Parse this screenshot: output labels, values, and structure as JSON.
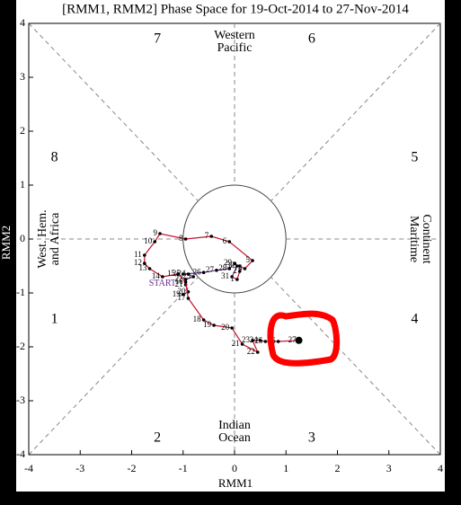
{
  "chart_data": {
    "type": "line",
    "title": "[RMM1, RMM2] Phase Space for 19-Oct-2014 to 27-Nov-2014",
    "xlabel": "RMM1",
    "ylabel": "RMM2",
    "xlim": [
      -4,
      4
    ],
    "ylim": [
      -4,
      4
    ],
    "xticks": [
      -4,
      -3,
      -2,
      -1,
      0,
      1,
      2,
      3,
      4
    ],
    "yticks": [
      -4,
      -3,
      -2,
      -1,
      0,
      1,
      2,
      3,
      4
    ],
    "phases": [
      "1",
      "2",
      "3",
      "4",
      "5",
      "6",
      "7",
      "8"
    ],
    "regions": {
      "top": [
        "Western",
        "Pacific"
      ],
      "bottom": [
        "Indian",
        "Ocean"
      ],
      "left": [
        "West. Hem.",
        "and Africa"
      ],
      "right": [
        "Maritime",
        "Continent"
      ]
    },
    "start_label": "START",
    "series": [
      {
        "color": "#6a2c91",
        "labels": [
          "19",
          "20",
          "21",
          "22",
          "23",
          "24",
          "25",
          "26",
          "27",
          "28",
          "29",
          "30",
          "31"
        ],
        "x": [
          -1.0,
          -0.9,
          -0.95,
          -0.95,
          -0.8,
          -0.9,
          -1.0,
          -0.6,
          -0.35,
          -0.1,
          0.0,
          0.05,
          -0.05
        ],
        "values": [
          -1.03,
          -0.98,
          -0.85,
          -0.75,
          -0.7,
          -0.65,
          -0.65,
          -0.62,
          -0.58,
          -0.55,
          -0.45,
          -0.5,
          -0.7
        ]
      },
      {
        "color": "#c8102e",
        "labels": [
          "1",
          "2",
          "3",
          "4",
          "5",
          "6",
          "7",
          "8",
          "9",
          "10",
          "11",
          "12",
          "13",
          "14",
          "15",
          "16",
          "17",
          "18",
          "19",
          "20",
          "21",
          "22",
          "23",
          "24",
          "25",
          "26",
          "27"
        ],
        "x": [
          0.05,
          0.1,
          0.1,
          0.2,
          0.35,
          -0.1,
          -0.45,
          -0.95,
          -1.45,
          -1.55,
          -1.75,
          -1.75,
          -1.65,
          -1.4,
          -1.1,
          -0.95,
          -0.9,
          -0.6,
          -0.4,
          -0.05,
          0.15,
          0.45,
          0.35,
          0.5,
          0.6,
          0.85,
          1.25
        ],
        "values": [
          -0.75,
          -0.6,
          -0.5,
          -0.55,
          -0.4,
          -0.05,
          0.05,
          0.0,
          0.1,
          -0.05,
          -0.3,
          -0.45,
          -0.55,
          -0.7,
          -0.65,
          -0.8,
          -1.1,
          -1.5,
          -1.6,
          -1.65,
          -1.95,
          -2.1,
          -1.88,
          -1.88,
          -1.9,
          -1.9,
          -1.88
        ]
      }
    ]
  }
}
